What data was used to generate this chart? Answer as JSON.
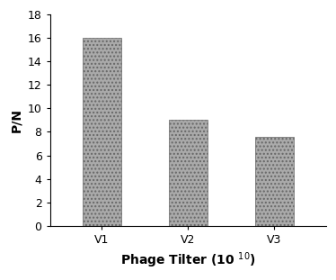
{
  "categories": [
    "V1",
    "V2",
    "V3"
  ],
  "values": [
    16.0,
    9.0,
    7.6
  ],
  "bar_color": "#aaaaaa",
  "bar_hatch": "....",
  "bar_edgecolor": "#666666",
  "ylabel": "P/N",
  "xlabel": "Phage Tilter (10 $^{10}$)",
  "ylim": [
    0,
    18
  ],
  "yticks": [
    0,
    2,
    4,
    6,
    8,
    10,
    12,
    14,
    16,
    18
  ],
  "bar_width": 0.45,
  "background_color": "#ffffff",
  "label_fontsize": 10,
  "tick_fontsize": 9
}
